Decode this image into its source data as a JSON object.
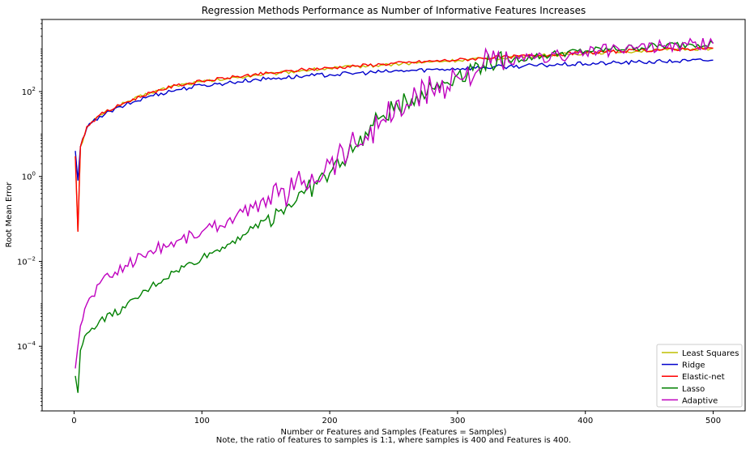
{
  "chart_data": {
    "type": "line",
    "title": "Regression Methods Performance as Number of Informative Features Increases",
    "xlabel": "Number or Features and Samples (Features = Samples)",
    "ylabel": "Root Mean Error",
    "note": "Note, the ratio of features to samples is 1:1, where samples is 400 and Features is 400.",
    "y_scale": "log",
    "xlim": [
      -25,
      525
    ],
    "ylim": [
      3e-06,
      5000
    ],
    "x_ticks": [
      0,
      100,
      200,
      300,
      400,
      500
    ],
    "x_tick_labels": [
      "0",
      "100",
      "200",
      "300",
      "400",
      "500"
    ],
    "y_ticks": [
      0.0001,
      0.01,
      1,
      100
    ],
    "y_tick_labels": [
      {
        "base": "10",
        "exp": "−4"
      },
      {
        "base": "10",
        "exp": "−2"
      },
      {
        "base": "10",
        "exp": "0"
      },
      {
        "base": "10",
        "exp": "2"
      }
    ],
    "grid": false,
    "legend_position": "lower-right",
    "series": [
      {
        "name": "Least Squares",
        "color": "#bfbf00",
        "x": [
          1,
          3,
          5,
          10,
          20,
          40,
          60,
          80,
          100,
          120,
          140,
          160,
          180,
          200,
          220,
          240,
          260,
          280,
          300,
          320,
          340,
          360,
          380,
          400,
          420,
          440,
          460,
          480,
          500
        ],
        "y": [
          3,
          0.05,
          5,
          14,
          28,
          55,
          95,
          140,
          170,
          200,
          240,
          270,
          320,
          350,
          390,
          420,
          460,
          500,
          540,
          590,
          640,
          690,
          740,
          800,
          860,
          900,
          950,
          1000,
          1050
        ]
      },
      {
        "name": "Ridge",
        "color": "#0000cc",
        "x": [
          1,
          3,
          5,
          10,
          20,
          40,
          60,
          80,
          100,
          120,
          140,
          160,
          180,
          200,
          220,
          240,
          260,
          280,
          300,
          320,
          340,
          360,
          380,
          400,
          420,
          440,
          460,
          480,
          500
        ],
        "y": [
          4,
          0.8,
          5,
          14,
          26,
          48,
          80,
          110,
          140,
          160,
          190,
          210,
          230,
          250,
          270,
          290,
          310,
          330,
          350,
          370,
          390,
          410,
          430,
          450,
          470,
          490,
          510,
          530,
          550
        ]
      },
      {
        "name": "Elastic-net",
        "color": "#ff0000",
        "x": [
          1,
          3,
          5,
          10,
          20,
          40,
          60,
          80,
          100,
          120,
          140,
          160,
          180,
          200,
          220,
          240,
          260,
          280,
          300,
          320,
          340,
          360,
          380,
          400,
          420,
          440,
          460,
          480,
          500
        ],
        "y": [
          3,
          0.05,
          5,
          15,
          28,
          55,
          95,
          140,
          175,
          210,
          250,
          280,
          330,
          360,
          400,
          440,
          480,
          520,
          560,
          610,
          660,
          710,
          760,
          820,
          870,
          920,
          970,
          1020,
          1050
        ]
      },
      {
        "name": "Lasso",
        "color": "#008000",
        "x": [
          1,
          3,
          5,
          10,
          20,
          40,
          60,
          80,
          100,
          120,
          140,
          160,
          180,
          200,
          220,
          240,
          260,
          280,
          300,
          320,
          340,
          360,
          380,
          400,
          420,
          440,
          460,
          480,
          500
        ],
        "y": [
          2e-05,
          8e-06,
          8e-05,
          0.0002,
          0.0004,
          0.0008,
          0.0025,
          0.006,
          0.012,
          0.025,
          0.06,
          0.15,
          0.4,
          1.2,
          5,
          25,
          60,
          120,
          250,
          450,
          550,
          650,
          800,
          900,
          1000,
          1100,
          1200,
          1300,
          1400
        ]
      },
      {
        "name": "Adaptive",
        "color": "#bf00bf",
        "x": [
          1,
          3,
          5,
          10,
          20,
          40,
          60,
          80,
          100,
          120,
          140,
          160,
          180,
          200,
          220,
          240,
          260,
          280,
          300,
          320,
          340,
          360,
          380,
          400,
          420,
          440,
          460,
          480,
          500
        ],
        "y": [
          3e-05,
          0.0001,
          0.0003,
          0.001,
          0.003,
          0.008,
          0.018,
          0.03,
          0.05,
          0.09,
          0.18,
          0.35,
          0.8,
          2,
          6,
          20,
          50,
          110,
          220,
          400,
          500,
          600,
          700,
          850,
          950,
          1050,
          1150,
          1250,
          1350
        ]
      }
    ]
  }
}
